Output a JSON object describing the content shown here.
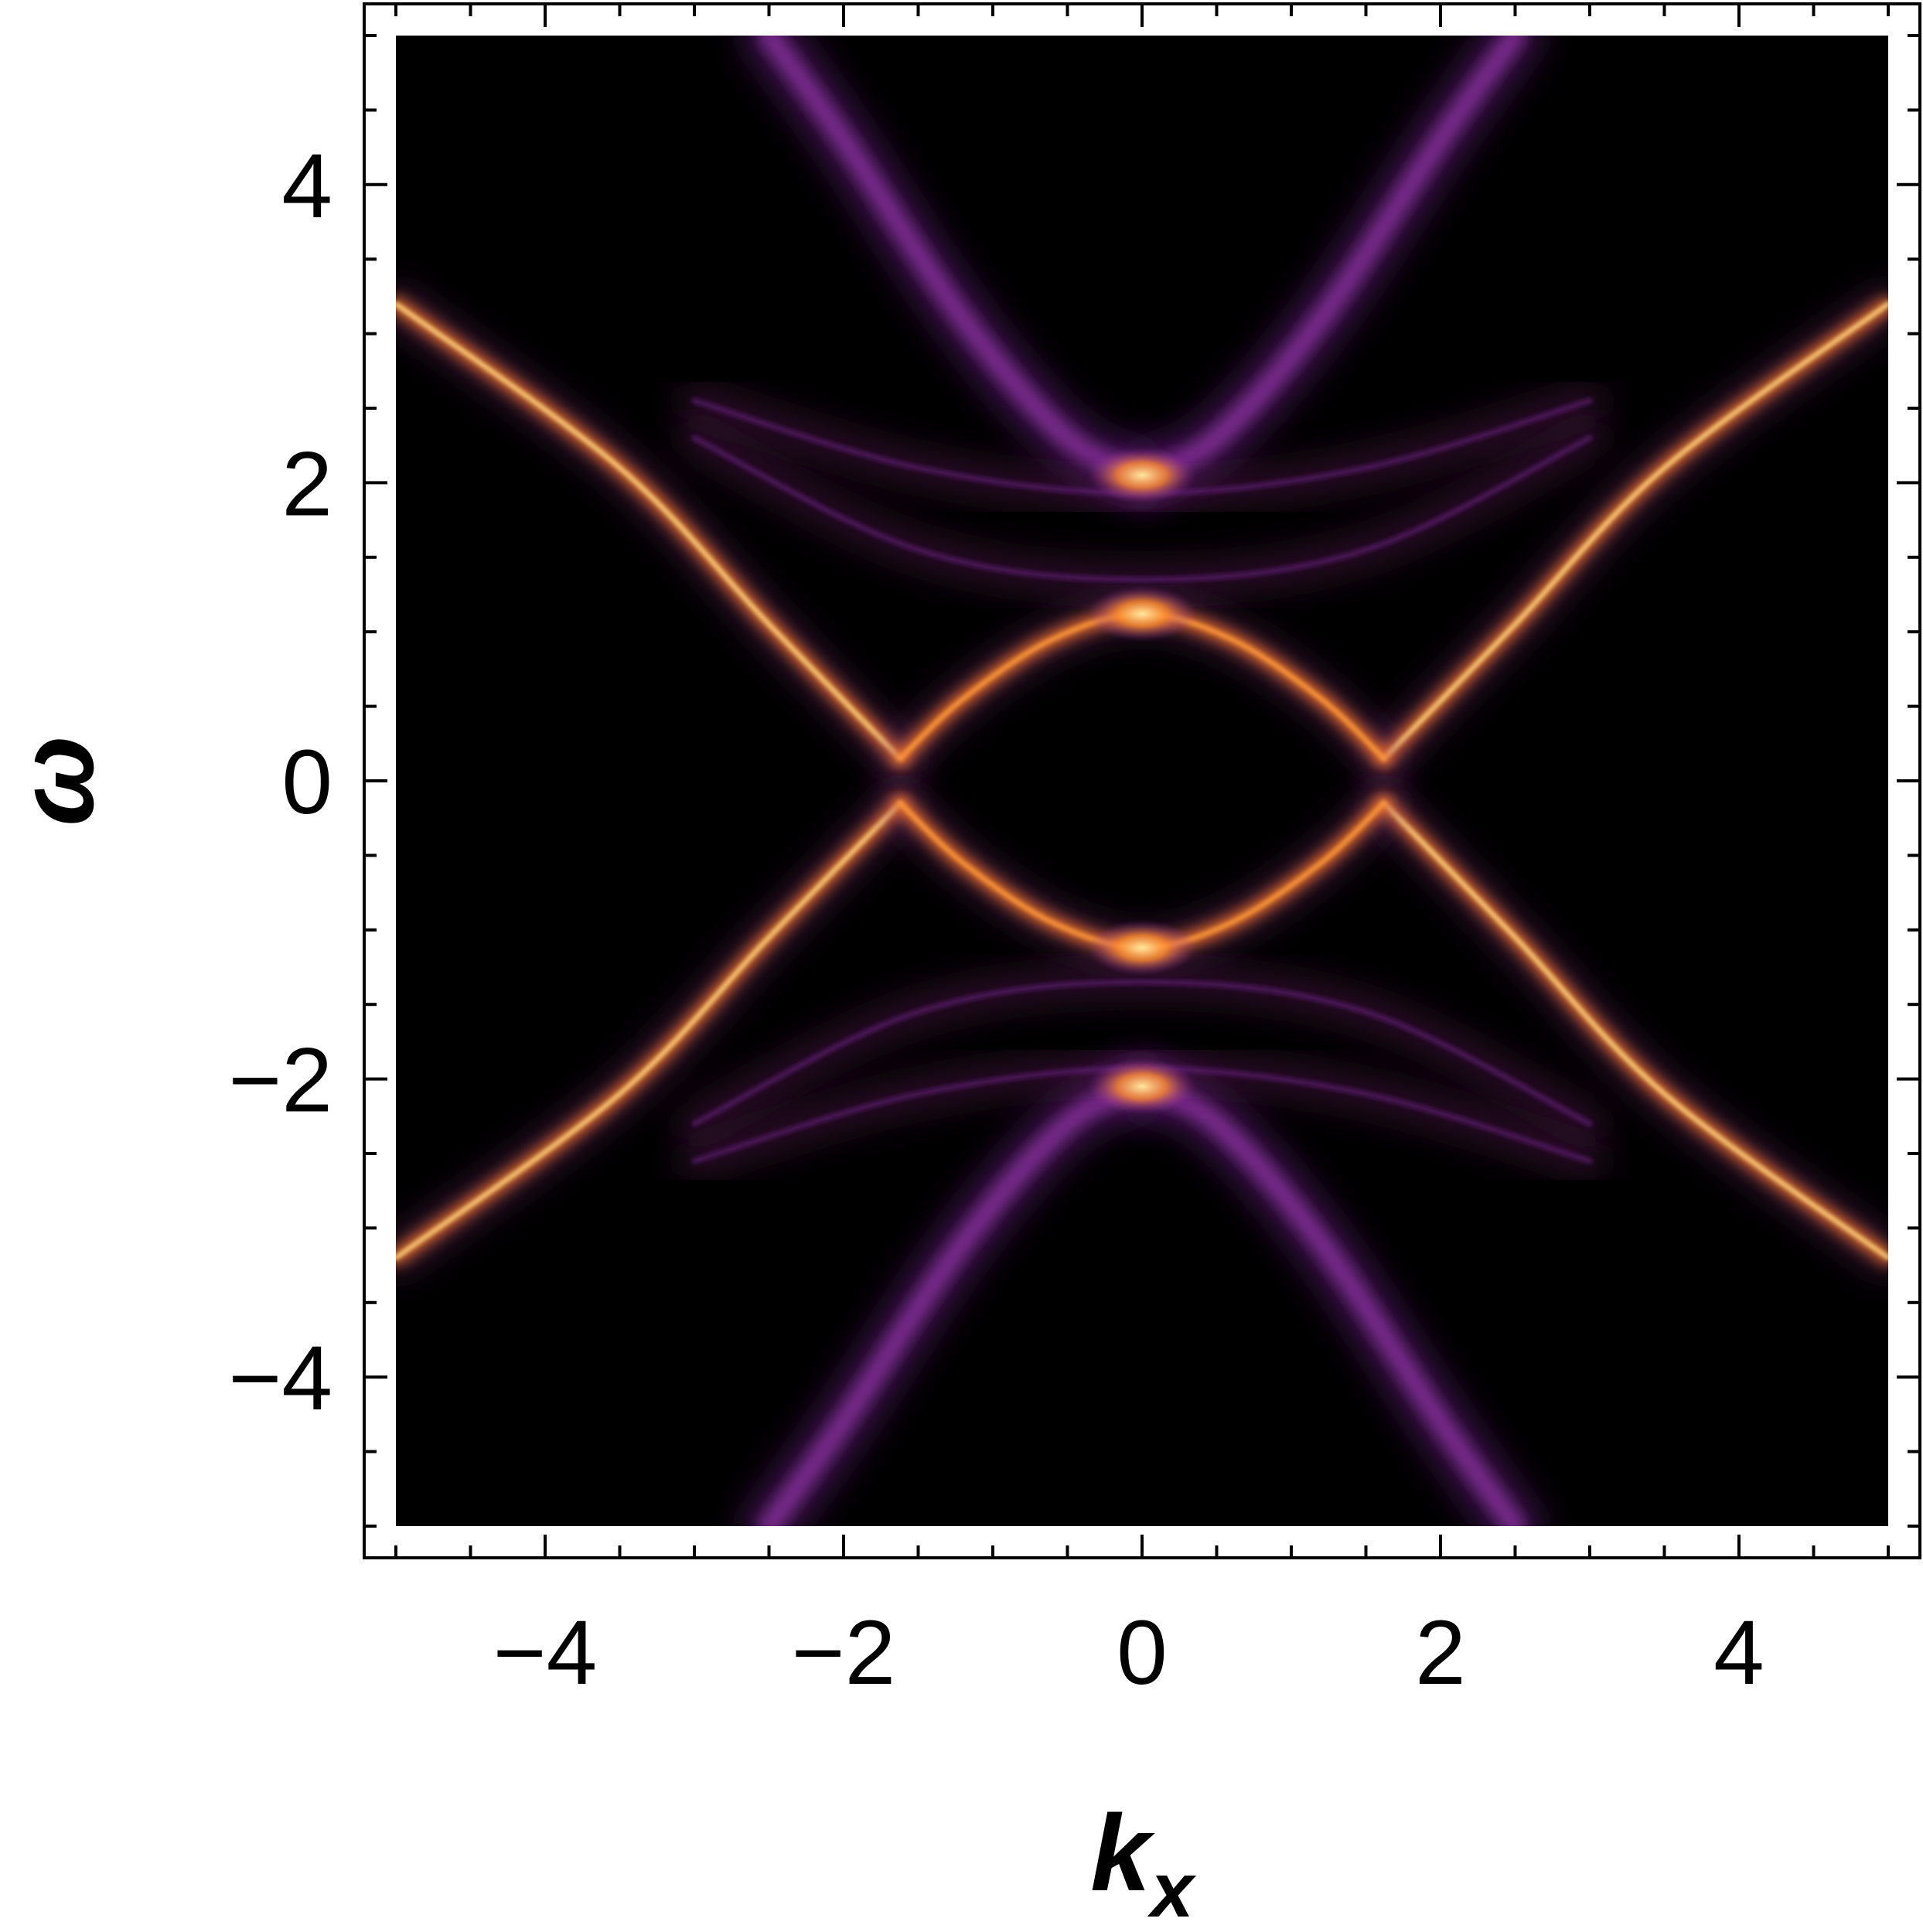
{
  "chart_data": {
    "type": "heatmap",
    "title": "",
    "xlabel": "k",
    "xlabel_subscript": "x",
    "ylabel": "ω",
    "xlim": [
      -5,
      5
    ],
    "ylim": [
      -5,
      5
    ],
    "x_ticks": [
      -4,
      -2,
      0,
      2,
      4
    ],
    "y_ticks": [
      -4,
      -2,
      0,
      2,
      4
    ],
    "x_tick_labels": [
      "−4",
      "−2",
      "0",
      "2",
      "4"
    ],
    "y_tick_labels": [
      "−4",
      "−2",
      "0",
      "2",
      "4"
    ],
    "minor_tick_step": 0.5,
    "colormap": "inferno",
    "background_color": "#000000",
    "grid": false,
    "legend": "none",
    "features": [
      {
        "name": "outer-branch-upper-right",
        "kind": "line",
        "color": "#ffd27a",
        "intensity": 1.0,
        "points": [
          [
            1.62,
            0.15
          ],
          [
            2.5,
            1.05
          ],
          [
            3.5,
            2.1
          ],
          [
            5.0,
            3.2
          ]
        ]
      },
      {
        "name": "outer-branch-upper-left",
        "kind": "line",
        "color": "#ffd27a",
        "intensity": 1.0,
        "points": [
          [
            -1.62,
            0.15
          ],
          [
            -2.5,
            1.05
          ],
          [
            -3.5,
            2.1
          ],
          [
            -5.0,
            3.2
          ]
        ]
      },
      {
        "name": "outer-branch-lower-right",
        "kind": "line",
        "color": "#ffd27a",
        "intensity": 1.0,
        "points": [
          [
            1.62,
            -0.15
          ],
          [
            2.5,
            -1.05
          ],
          [
            3.5,
            -2.1
          ],
          [
            5.0,
            -3.2
          ]
        ]
      },
      {
        "name": "outer-branch-lower-left",
        "kind": "line",
        "color": "#ffd27a",
        "intensity": 1.0,
        "points": [
          [
            -1.62,
            -0.15
          ],
          [
            -2.5,
            -1.05
          ],
          [
            -3.5,
            -2.1
          ],
          [
            -5.0,
            -3.2
          ]
        ]
      },
      {
        "name": "inner-arc-upper",
        "kind": "line",
        "color": "#ff9a3a",
        "intensity": 0.9,
        "points": [
          [
            -1.62,
            0.15
          ],
          [
            -1.2,
            0.55
          ],
          [
            -0.6,
            0.95
          ],
          [
            0.0,
            1.12
          ],
          [
            0.6,
            0.95
          ],
          [
            1.2,
            0.55
          ],
          [
            1.62,
            0.15
          ]
        ]
      },
      {
        "name": "inner-arc-lower",
        "kind": "line",
        "color": "#ff9a3a",
        "intensity": 0.9,
        "points": [
          [
            -1.62,
            -0.15
          ],
          [
            -1.2,
            -0.55
          ],
          [
            -0.6,
            -0.95
          ],
          [
            0.0,
            -1.12
          ],
          [
            0.6,
            -0.95
          ],
          [
            1.2,
            -0.55
          ],
          [
            1.62,
            -0.15
          ]
        ]
      },
      {
        "name": "upper-cone-right",
        "kind": "line",
        "color": "#8a2f9e",
        "intensity": 0.6,
        "points": [
          [
            0.0,
            2.05
          ],
          [
            0.5,
            2.3
          ],
          [
            1.2,
            3.1
          ],
          [
            2.0,
            4.3
          ],
          [
            2.5,
            5.0
          ]
        ]
      },
      {
        "name": "upper-cone-left",
        "kind": "line",
        "color": "#8a2f9e",
        "intensity": 0.6,
        "points": [
          [
            0.0,
            2.05
          ],
          [
            -0.5,
            2.3
          ],
          [
            -1.2,
            3.1
          ],
          [
            -2.0,
            4.3
          ],
          [
            -2.5,
            5.0
          ]
        ]
      },
      {
        "name": "lower-cone-right",
        "kind": "line",
        "color": "#8a2f9e",
        "intensity": 0.6,
        "points": [
          [
            0.0,
            -2.05
          ],
          [
            0.5,
            -2.3
          ],
          [
            1.2,
            -3.1
          ],
          [
            2.0,
            -4.3
          ],
          [
            2.5,
            -5.0
          ]
        ]
      },
      {
        "name": "lower-cone-left",
        "kind": "line",
        "color": "#8a2f9e",
        "intensity": 0.6,
        "points": [
          [
            0.0,
            -2.05
          ],
          [
            -0.5,
            -2.3
          ],
          [
            -1.2,
            -3.1
          ],
          [
            -2.0,
            -4.3
          ],
          [
            -2.5,
            -5.0
          ]
        ]
      },
      {
        "name": "faint-arc-upper-1",
        "kind": "line",
        "color": "#4a1760",
        "intensity": 0.45,
        "points": [
          [
            -3.0,
            2.55
          ],
          [
            -1.5,
            2.1
          ],
          [
            0.0,
            1.93
          ],
          [
            1.5,
            2.1
          ],
          [
            3.0,
            2.55
          ]
        ]
      },
      {
        "name": "faint-arc-upper-2",
        "kind": "line",
        "color": "#4a1760",
        "intensity": 0.45,
        "points": [
          [
            -3.0,
            2.3
          ],
          [
            -1.5,
            1.55
          ],
          [
            0.0,
            1.35
          ],
          [
            1.5,
            1.55
          ],
          [
            3.0,
            2.3
          ]
        ]
      },
      {
        "name": "faint-arc-lower-1",
        "kind": "line",
        "color": "#4a1760",
        "intensity": 0.45,
        "points": [
          [
            -3.0,
            -2.55
          ],
          [
            -1.5,
            -2.1
          ],
          [
            0.0,
            -1.93
          ],
          [
            1.5,
            -2.1
          ],
          [
            3.0,
            -2.55
          ]
        ]
      },
      {
        "name": "faint-arc-lower-2",
        "kind": "line",
        "color": "#4a1760",
        "intensity": 0.45,
        "points": [
          [
            -3.0,
            -2.3
          ],
          [
            -1.5,
            -1.55
          ],
          [
            0.0,
            -1.35
          ],
          [
            1.5,
            -1.55
          ],
          [
            3.0,
            -2.3
          ]
        ]
      },
      {
        "name": "hotspot-upper-2",
        "kind": "point",
        "color": "#ffa040",
        "x": 0.0,
        "y": 2.05
      },
      {
        "name": "hotspot-upper-1",
        "kind": "point",
        "color": "#ffa040",
        "x": 0.0,
        "y": 1.12
      },
      {
        "name": "hotspot-lower-1",
        "kind": "point",
        "color": "#ffa040",
        "x": 0.0,
        "y": -1.12
      },
      {
        "name": "hotspot-lower-2",
        "kind": "point",
        "color": "#ffa040",
        "x": 0.0,
        "y": -2.05
      }
    ]
  }
}
